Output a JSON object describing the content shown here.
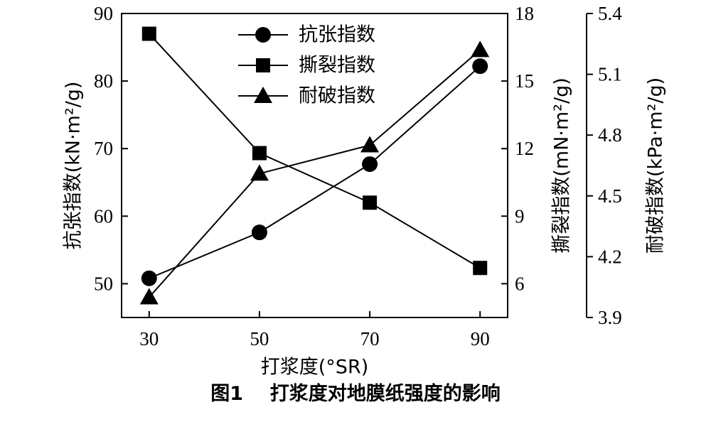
{
  "chart_data": {
    "type": "line",
    "xlabel": "打浆度(°SR)",
    "x": [
      30,
      50,
      70,
      90
    ],
    "xticks": [
      "30",
      "50",
      "70",
      "90"
    ],
    "xlim": [
      25,
      95
    ],
    "series": [
      {
        "name": "抗张指数",
        "axis": "left",
        "marker": "circle",
        "values": [
          50.8,
          57.6,
          67.7,
          82.2
        ]
      },
      {
        "name": "撕裂指数",
        "axis": "right1",
        "marker": "square",
        "values": [
          17.1,
          11.8,
          9.6,
          6.7
        ]
      },
      {
        "name": "耐破指数",
        "axis": "right2",
        "marker": "triangle",
        "values": [
          4.0,
          4.61,
          4.75,
          5.22
        ]
      }
    ],
    "axes": {
      "left": {
        "label": "抗张指数(kN·m²/g)",
        "ylim": [
          45,
          90
        ],
        "ticks": [
          "50",
          "60",
          "70",
          "80",
          "90"
        ]
      },
      "right1": {
        "label": "撕裂指数(mN·m²/g)",
        "ylim": [
          4.5,
          18
        ],
        "ticks": [
          "6",
          "9",
          "12",
          "15",
          "18"
        ]
      },
      "right2": {
        "label": "耐破指数(kPa·m²/g)",
        "ylim": [
          3.9,
          5.4
        ],
        "ticks": [
          "3.9",
          "4.2",
          "4.5",
          "4.8",
          "5.1",
          "5.4"
        ]
      }
    },
    "legend_position": "top-center",
    "grid": false
  },
  "caption": {
    "label": "图1",
    "title": "打浆度对地膜纸强度的影响"
  }
}
